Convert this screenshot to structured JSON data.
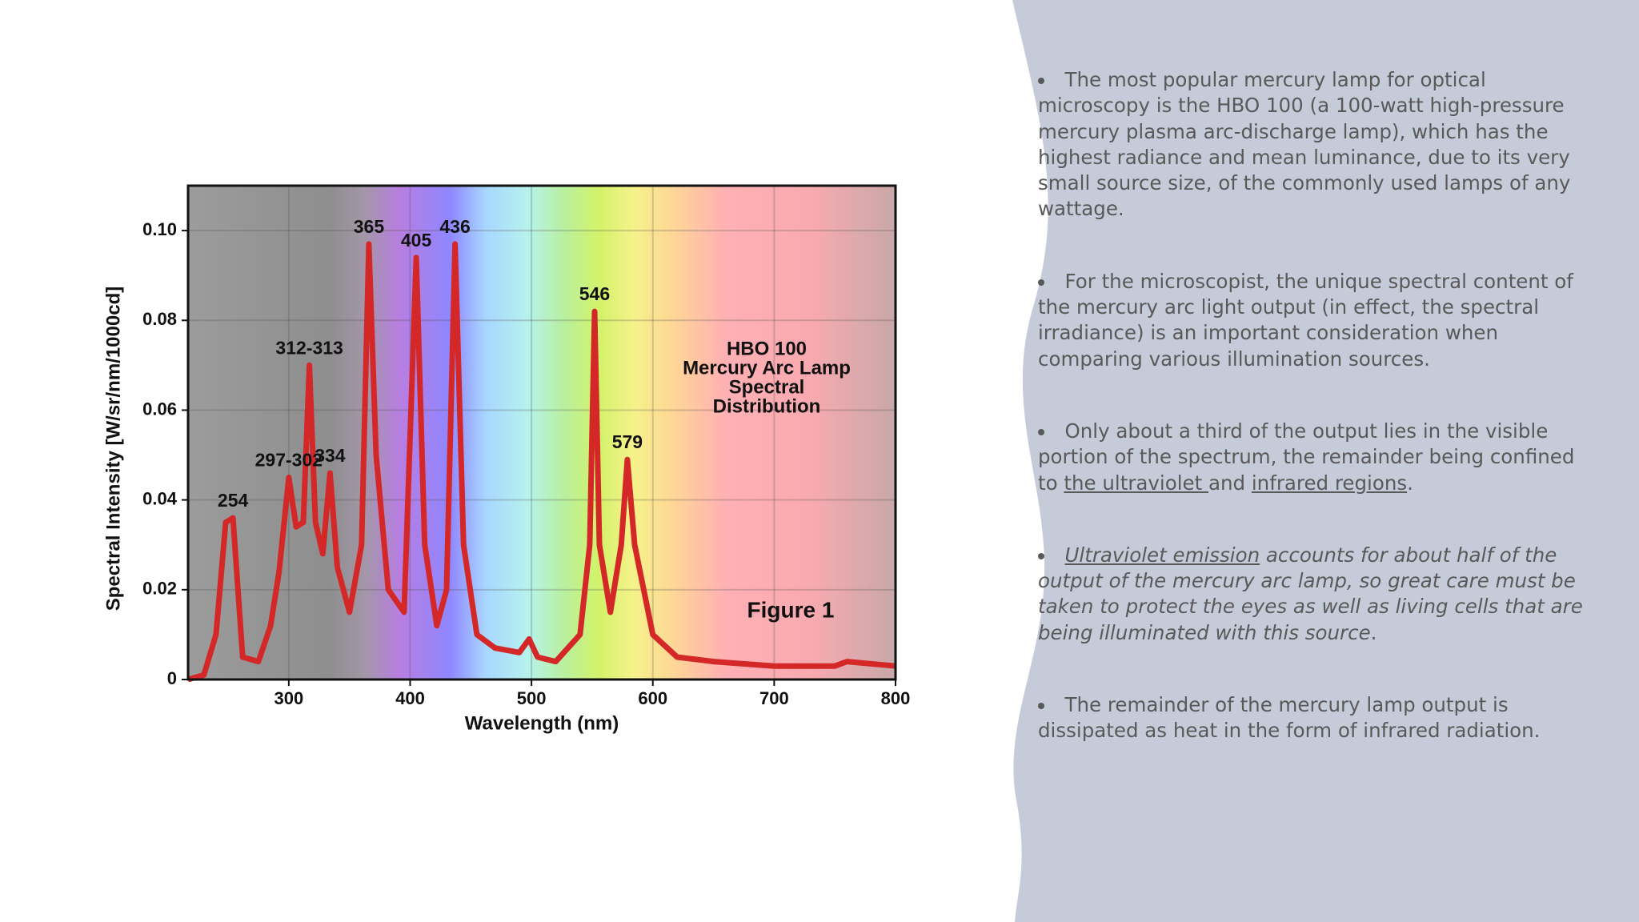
{
  "chart_data": {
    "type": "line",
    "title": [
      "HBO 100",
      "Mercury Arc Lamp",
      "Spectral",
      "Distribution"
    ],
    "figure_label": "Figure 1",
    "x_label": "Wavelength (nm)",
    "y_label": "Spectral Intensity [W/sr/nm/1000cd]",
    "xlim": [
      217,
      800
    ],
    "ylim": [
      0,
      0.11
    ],
    "xticks": [
      300,
      400,
      500,
      600,
      700,
      800
    ],
    "yticks": [
      0,
      0.02,
      0.04,
      0.06,
      0.08,
      {
        "value": 0.1,
        "label": "0.10"
      }
    ],
    "grid": true,
    "x": [
      217,
      230,
      240,
      248,
      254,
      262,
      275,
      285,
      292,
      300,
      306,
      312,
      317,
      322,
      328,
      334,
      340,
      350,
      360,
      366,
      372,
      382,
      395,
      405,
      412,
      422,
      430,
      437,
      444,
      455,
      470,
      490,
      498,
      505,
      520,
      540,
      548,
      552,
      556,
      565,
      574,
      579,
      585,
      600,
      620,
      650,
      700,
      750,
      760,
      800
    ],
    "series": [
      {
        "name": "HBO 100",
        "color": "#d42828",
        "values": [
          0,
          0.001,
          0.01,
          0.035,
          0.036,
          0.005,
          0.004,
          0.012,
          0.024,
          0.045,
          0.034,
          0.035,
          0.07,
          0.035,
          0.028,
          0.046,
          0.025,
          0.015,
          0.03,
          0.097,
          0.05,
          0.02,
          0.015,
          0.094,
          0.03,
          0.012,
          0.02,
          0.097,
          0.03,
          0.01,
          0.007,
          0.006,
          0.009,
          0.005,
          0.004,
          0.01,
          0.03,
          0.082,
          0.03,
          0.015,
          0.03,
          0.049,
          0.03,
          0.01,
          0.005,
          0.004,
          0.003,
          0.003,
          0.004,
          0.003
        ]
      }
    ],
    "annotations": [
      {
        "text": "254",
        "x": 254,
        "y": 0.036
      },
      {
        "text": "297-302",
        "x": 300,
        "y": 0.045
      },
      {
        "text": "312-313",
        "x": 317,
        "y": 0.07
      },
      {
        "text": "334",
        "x": 334,
        "y": 0.046
      },
      {
        "text": "365",
        "x": 366,
        "y": 0.097
      },
      {
        "text": "405",
        "x": 405,
        "y": 0.094
      },
      {
        "text": "436",
        "x": 437,
        "y": 0.097
      },
      {
        "text": "546",
        "x": 552,
        "y": 0.082
      },
      {
        "text": "579",
        "x": 579,
        "y": 0.049
      }
    ]
  },
  "bullets": [
    {
      "italic": false,
      "runs": [
        {
          "text": "The most popular mercury lamp for optical microscopy is the HBO 100 (a 100-watt high-pressure mercury plasma arc-discharge lamp), which has the highest radiance and mean luminance, due to its very small source size, of the commonly used lamps of any wattage.",
          "underline": false
        }
      ]
    },
    {
      "italic": false,
      "runs": [
        {
          "text": "For the microscopist, the unique spectral content of the mercury arc light output (in effect, the spectral irradiance) is an important consideration when comparing various illumination sources.",
          "underline": false
        }
      ]
    },
    {
      "italic": false,
      "runs": [
        {
          "text": "Only about a third of the output lies in the visible portion of the spectrum, the remainder being confined to ",
          "underline": false
        },
        {
          "text": "the ultraviolet ",
          "underline": true
        },
        {
          "text": "and ",
          "underline": false
        },
        {
          "text": "infrared regions",
          "underline": true
        },
        {
          "text": ".",
          "underline": false
        }
      ]
    },
    {
      "italic": true,
      "runs": [
        {
          "text": "Ultraviolet emission",
          "underline": true
        },
        {
          "text": " accounts for about half of the output of the mercury arc lamp, so great care must be taken to protect the eyes as well as living cells that are being illuminated with this source",
          "underline": false
        },
        {
          "text": ".",
          "underline": false
        }
      ]
    },
    {
      "italic": false,
      "runs": [
        {
          "text": "The remainder of the mercury lamp output is dissipated as heat in the form of infrared radiation.",
          "underline": false
        }
      ]
    }
  ]
}
